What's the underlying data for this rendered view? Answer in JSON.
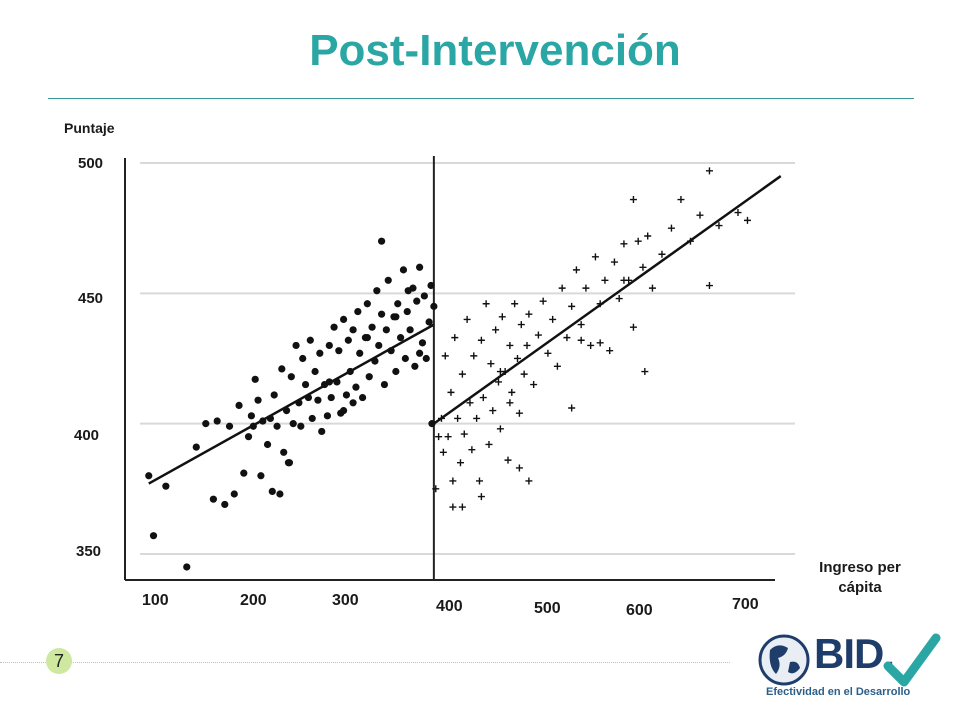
{
  "header": {
    "title": "Post-Intervención"
  },
  "footer": {
    "page_number": "7",
    "logo_text": "BID.",
    "logo_tagline": "Efectividad en el Desarrollo"
  },
  "colors": {
    "title": "#2aa6a4",
    "points": "#111111",
    "grid": "#d9d9d9",
    "page_badge": "#cfe8a0",
    "check": "#2aa6a4"
  },
  "chart_data": {
    "type": "scatter",
    "title": "",
    "xlabel": "Ingreso per cápita",
    "ylabel": "Puntaje",
    "y_ticks": [
      "500",
      "450",
      "400",
      "350"
    ],
    "x_ticks": [
      "100",
      "200",
      "300",
      "400",
      "500",
      "600",
      "700"
    ],
    "xlim": [
      75,
      780
    ],
    "ylim": [
      340,
      505
    ],
    "grid": "horizontal",
    "threshold_x": 400,
    "series": [
      {
        "marker": "dot",
        "points": [
          [
            100,
            380
          ],
          [
            105,
            357
          ],
          [
            118,
            376
          ],
          [
            140,
            345
          ],
          [
            150,
            391
          ],
          [
            160,
            400
          ],
          [
            168,
            371
          ],
          [
            172,
            401
          ],
          [
            180,
            369
          ],
          [
            185,
            399
          ],
          [
            190,
            373
          ],
          [
            195,
            407
          ],
          [
            200,
            381
          ],
          [
            205,
            395
          ],
          [
            208,
            403
          ],
          [
            210,
            399
          ],
          [
            212,
            417
          ],
          [
            215,
            409
          ],
          [
            218,
            380
          ],
          [
            220,
            401
          ],
          [
            225,
            392
          ],
          [
            228,
            402
          ],
          [
            230,
            374
          ],
          [
            232,
            411
          ],
          [
            235,
            399
          ],
          [
            238,
            373
          ],
          [
            240,
            421
          ],
          [
            242,
            389
          ],
          [
            245,
            405
          ],
          [
            248,
            385
          ],
          [
            250,
            418
          ],
          [
            252,
            400
          ],
          [
            255,
            430
          ],
          [
            258,
            408
          ],
          [
            260,
            399
          ],
          [
            262,
            425
          ],
          [
            265,
            415
          ],
          [
            268,
            410
          ],
          [
            270,
            432
          ],
          [
            272,
            402
          ],
          [
            275,
            420
          ],
          [
            278,
            409
          ],
          [
            280,
            427
          ],
          [
            282,
            397
          ],
          [
            285,
            415
          ],
          [
            288,
            403
          ],
          [
            290,
            430
          ],
          [
            292,
            410
          ],
          [
            295,
            437
          ],
          [
            298,
            416
          ],
          [
            300,
            428
          ],
          [
            302,
            404
          ],
          [
            305,
            440
          ],
          [
            308,
            411
          ],
          [
            310,
            432
          ],
          [
            312,
            420
          ],
          [
            315,
            436
          ],
          [
            318,
            414
          ],
          [
            320,
            443
          ],
          [
            322,
            427
          ],
          [
            325,
            410
          ],
          [
            328,
            433
          ],
          [
            330,
            446
          ],
          [
            332,
            418
          ],
          [
            335,
            437
          ],
          [
            338,
            424
          ],
          [
            340,
            451
          ],
          [
            342,
            430
          ],
          [
            345,
            442
          ],
          [
            348,
            415
          ],
          [
            350,
            436
          ],
          [
            352,
            455
          ],
          [
            355,
            428
          ],
          [
            358,
            441
          ],
          [
            360,
            420
          ],
          [
            362,
            446
          ],
          [
            365,
            433
          ],
          [
            368,
            459
          ],
          [
            370,
            425
          ],
          [
            372,
            443
          ],
          [
            375,
            436
          ],
          [
            378,
            452
          ],
          [
            380,
            422
          ],
          [
            382,
            447
          ],
          [
            385,
            460
          ],
          [
            388,
            431
          ],
          [
            390,
            449
          ],
          [
            392,
            425
          ],
          [
            395,
            439
          ],
          [
            397,
            453
          ],
          [
            398,
            400
          ],
          [
            400,
            445
          ],
          [
            345,
            470
          ],
          [
            247,
            385
          ],
          [
            315,
            408
          ],
          [
            305,
            405
          ],
          [
            330,
            433
          ],
          [
            290,
            416
          ],
          [
            360,
            441
          ],
          [
            373,
            451
          ],
          [
            385,
            427
          ]
        ]
      },
      {
        "marker": "plus",
        "points": [
          [
            402,
            375
          ],
          [
            405,
            395
          ],
          [
            408,
            402
          ],
          [
            410,
            389
          ],
          [
            412,
            426
          ],
          [
            415,
            395
          ],
          [
            418,
            412
          ],
          [
            420,
            378
          ],
          [
            422,
            433
          ],
          [
            425,
            402
          ],
          [
            428,
            385
          ],
          [
            430,
            419
          ],
          [
            432,
            396
          ],
          [
            435,
            440
          ],
          [
            438,
            408
          ],
          [
            440,
            390
          ],
          [
            442,
            426
          ],
          [
            445,
            402
          ],
          [
            448,
            378
          ],
          [
            450,
            432
          ],
          [
            452,
            410
          ],
          [
            455,
            446
          ],
          [
            458,
            392
          ],
          [
            460,
            423
          ],
          [
            462,
            405
          ],
          [
            465,
            436
          ],
          [
            468,
            416
          ],
          [
            470,
            398
          ],
          [
            472,
            441
          ],
          [
            475,
            420
          ],
          [
            478,
            386
          ],
          [
            480,
            430
          ],
          [
            482,
            412
          ],
          [
            485,
            446
          ],
          [
            488,
            425
          ],
          [
            490,
            404
          ],
          [
            492,
            438
          ],
          [
            495,
            419
          ],
          [
            498,
            430
          ],
          [
            500,
            442
          ],
          [
            505,
            415
          ],
          [
            510,
            434
          ],
          [
            515,
            447
          ],
          [
            520,
            427
          ],
          [
            525,
            440
          ],
          [
            530,
            422
          ],
          [
            535,
            452
          ],
          [
            540,
            433
          ],
          [
            545,
            445
          ],
          [
            550,
            459
          ],
          [
            555,
            438
          ],
          [
            560,
            452
          ],
          [
            565,
            430
          ],
          [
            570,
            464
          ],
          [
            575,
            446
          ],
          [
            580,
            455
          ],
          [
            585,
            428
          ],
          [
            590,
            462
          ],
          [
            595,
            448
          ],
          [
            600,
            469
          ],
          [
            605,
            455
          ],
          [
            610,
            437
          ],
          [
            615,
            470
          ],
          [
            620,
            460
          ],
          [
            625,
            472
          ],
          [
            630,
            452
          ],
          [
            640,
            465
          ],
          [
            650,
            475
          ],
          [
            660,
            486
          ],
          [
            670,
            470
          ],
          [
            680,
            480
          ],
          [
            690,
            453
          ],
          [
            700,
            476
          ],
          [
            720,
            481
          ],
          [
            730,
            478
          ],
          [
            690,
            497
          ],
          [
            610,
            486
          ],
          [
            600,
            455
          ],
          [
            622,
            420
          ],
          [
            545,
            406
          ],
          [
            500,
            378
          ],
          [
            490,
            383
          ],
          [
            450,
            372
          ],
          [
            430,
            368
          ],
          [
            420,
            368
          ],
          [
            555,
            432
          ],
          [
            575,
            431
          ],
          [
            480,
            408
          ],
          [
            470,
            420
          ]
        ]
      }
    ],
    "regression_lines": [
      {
        "x": [
          100,
          400
        ],
        "y": [
          377,
          438
        ]
      },
      {
        "x": [
          400,
          765
        ],
        "y": [
          400,
          495
        ]
      }
    ]
  }
}
